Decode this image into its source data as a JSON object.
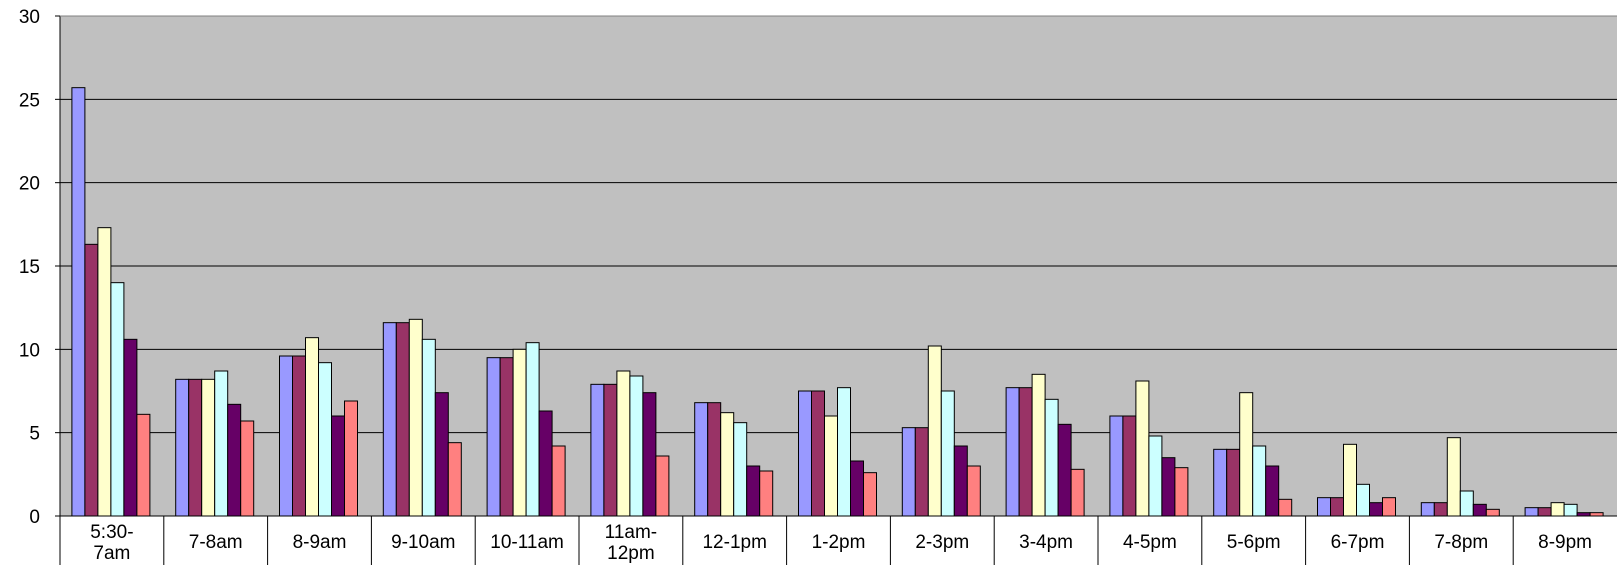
{
  "chart_data": {
    "type": "bar",
    "title": "",
    "xlabel": "",
    "ylabel": "",
    "ylim": [
      0,
      30
    ],
    "y_ticks": [
      "0",
      "5",
      "10",
      "15",
      "20",
      "25",
      "30"
    ],
    "grid": "horizontal",
    "legend": "none",
    "plot_background": "#C0C0C0",
    "categories": [
      [
        "5:30-",
        "7am"
      ],
      [
        "7-8am"
      ],
      [
        "8-9am"
      ],
      [
        "9-10am"
      ],
      [
        "10-11am"
      ],
      [
        "11am-",
        "12pm"
      ],
      [
        "12-1pm"
      ],
      [
        "1-2pm"
      ],
      [
        "2-3pm"
      ],
      [
        "3-4pm"
      ],
      [
        "4-5pm"
      ],
      [
        "5-6pm"
      ],
      [
        "6-7pm"
      ],
      [
        "7-8pm"
      ],
      [
        "8-9pm"
      ]
    ],
    "series": [
      {
        "color": "#9999FF",
        "values": [
          25.7,
          8.2,
          9.6,
          11.6,
          9.5,
          7.9,
          6.8,
          7.5,
          5.3,
          7.7,
          6.0,
          4.0,
          1.1,
          0.8,
          0.5
        ]
      },
      {
        "color": "#993366",
        "values": [
          16.3,
          8.2,
          9.6,
          11.6,
          9.5,
          7.9,
          6.8,
          7.5,
          5.3,
          7.7,
          6.0,
          4.0,
          1.1,
          0.8,
          0.5
        ]
      },
      {
        "color": "#FFFFCC",
        "values": [
          17.3,
          8.2,
          10.7,
          11.8,
          10.0,
          8.7,
          6.2,
          6.0,
          10.2,
          8.5,
          8.1,
          7.4,
          4.3,
          4.7,
          0.8
        ]
      },
      {
        "color": "#CCFFFF",
        "values": [
          14.0,
          8.7,
          9.2,
          10.6,
          10.4,
          8.4,
          5.6,
          7.7,
          7.5,
          7.0,
          4.8,
          4.2,
          1.9,
          1.5,
          0.7
        ]
      },
      {
        "color": "#660066",
        "values": [
          10.6,
          6.7,
          6.0,
          7.4,
          6.3,
          7.4,
          3.0,
          3.3,
          4.2,
          5.5,
          3.5,
          3.0,
          0.8,
          0.7,
          0.2
        ]
      },
      {
        "color": "#FF8080",
        "values": [
          6.1,
          5.7,
          6.9,
          4.4,
          4.2,
          3.6,
          2.7,
          2.6,
          3.0,
          2.8,
          2.9,
          1.0,
          1.1,
          0.4,
          0.2
        ]
      }
    ]
  }
}
